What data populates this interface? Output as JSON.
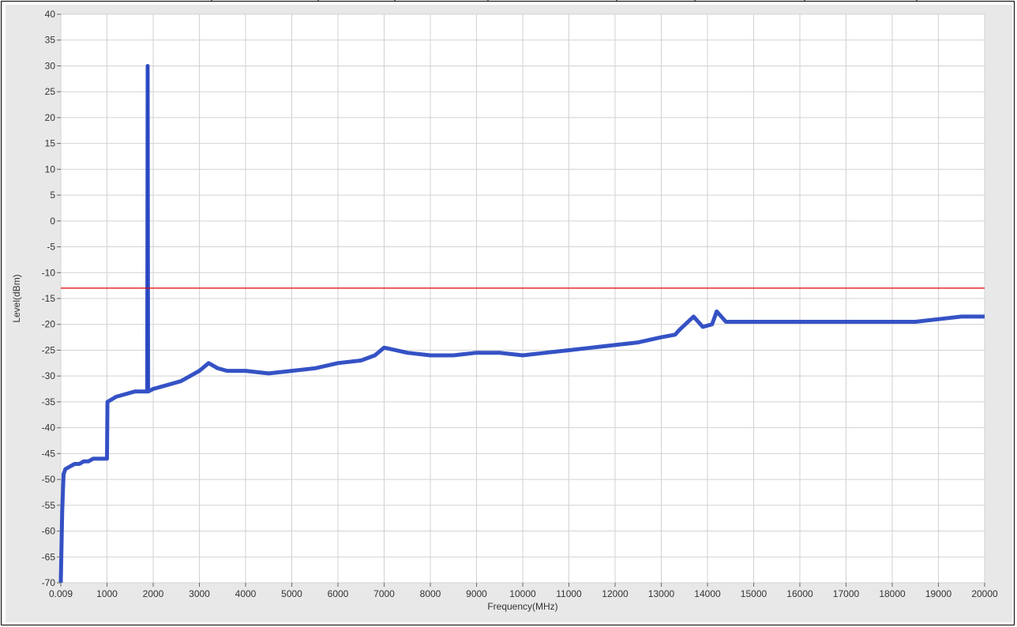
{
  "chart_data": {
    "type": "line",
    "title": "",
    "xlabel": "Frequency(MHz)",
    "ylabel": "Level(dBm)",
    "xlim": [
      0.009,
      20000
    ],
    "ylim": [
      -70,
      40
    ],
    "x_ticks": [
      {
        "value": 0.009,
        "label": "0.009"
      },
      {
        "value": 1000,
        "label": "1000"
      },
      {
        "value": 2000,
        "label": "2000"
      },
      {
        "value": 3000,
        "label": "3000"
      },
      {
        "value": 4000,
        "label": "4000"
      },
      {
        "value": 5000,
        "label": "5000"
      },
      {
        "value": 6000,
        "label": "6000"
      },
      {
        "value": 7000,
        "label": "7000"
      },
      {
        "value": 8000,
        "label": "8000"
      },
      {
        "value": 9000,
        "label": "9000"
      },
      {
        "value": 10000,
        "label": "10000"
      },
      {
        "value": 11000,
        "label": "11000"
      },
      {
        "value": 12000,
        "label": "12000"
      },
      {
        "value": 13000,
        "label": "13000"
      },
      {
        "value": 14000,
        "label": "14000"
      },
      {
        "value": 15000,
        "label": "15000"
      },
      {
        "value": 16000,
        "label": "16000"
      },
      {
        "value": 17000,
        "label": "17000"
      },
      {
        "value": 18000,
        "label": "18000"
      },
      {
        "value": 19000,
        "label": "19000"
      },
      {
        "value": 20000,
        "label": "20000"
      }
    ],
    "y_ticks": [
      40,
      35,
      30,
      25,
      20,
      15,
      10,
      5,
      0,
      -5,
      -10,
      -15,
      -20,
      -25,
      -30,
      -35,
      -40,
      -45,
      -50,
      -55,
      -60,
      -65,
      -70
    ],
    "grid": true,
    "limit_line": {
      "value": -13,
      "color": "#e00000"
    },
    "series": [
      {
        "color": "#1f3fbf",
        "x": [
          0.009,
          30,
          60,
          100,
          200,
          300,
          400,
          500,
          600,
          700,
          800,
          900,
          1000,
          1010,
          1200,
          1400,
          1600,
          1800,
          1870,
          1880,
          1890,
          2000,
          2200,
          2400,
          2600,
          2800,
          3000,
          3200,
          3400,
          3600,
          3800,
          4000,
          4500,
          5000,
          5500,
          6000,
          6500,
          6800,
          7000,
          7500,
          8000,
          8500,
          9000,
          9500,
          10000,
          10500,
          11000,
          11500,
          12000,
          12500,
          13000,
          13300,
          13400,
          13700,
          13900,
          14100,
          14200,
          14400,
          14700,
          15000,
          15500,
          16000,
          16500,
          17000,
          17500,
          18000,
          18500,
          19000,
          19500,
          20000
        ],
        "y": [
          -70,
          -56,
          -49,
          -48,
          -47.5,
          -47,
          -47,
          -46.5,
          -46.5,
          -46,
          -46,
          -46,
          -46,
          -35,
          -34,
          -33.5,
          -33,
          -33,
          -33,
          30,
          -33,
          -32.5,
          -32,
          -31.5,
          -31,
          -30,
          -29,
          -27.5,
          -28.5,
          -29,
          -29,
          -29,
          -29.5,
          -29,
          -28.5,
          -27.5,
          -27,
          -26,
          -24.5,
          -25.5,
          -26,
          -26,
          -25.5,
          -25.5,
          -26,
          -25.5,
          -25,
          -24.5,
          -24,
          -23.5,
          -22.5,
          -22,
          -21,
          -18.5,
          -20.5,
          -20,
          -17.5,
          -19.5,
          -19.5,
          -19.5,
          -19.5,
          -19.5,
          -19.5,
          -19.5,
          -19.5,
          -19.5,
          -19.5,
          -19,
          -18.5,
          -18.5
        ]
      }
    ]
  }
}
